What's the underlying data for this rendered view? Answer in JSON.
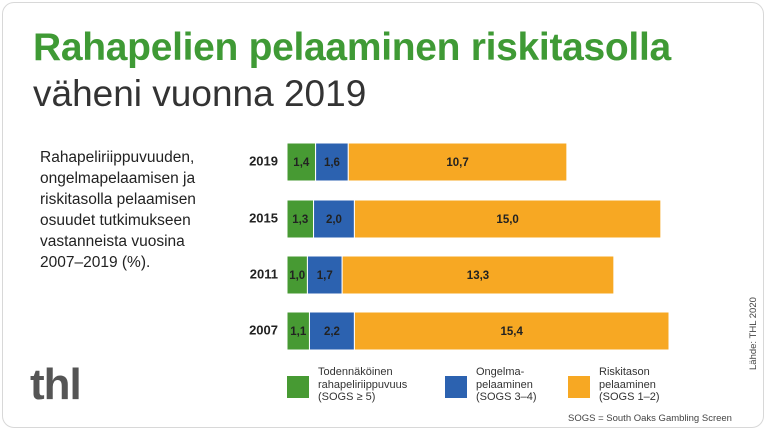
{
  "chart_data": {
    "type": "stacked-bar-horizontal",
    "title": "Rahapelien pelaaminen riskitasolla",
    "subtitle": "väheni vuonna 2019",
    "description": "Rahapeliriippuvuuden,\nongelmapelaamisen ja\nriskitasolla pelaamisen\nosuudet tutkimukseen\nvastanneista vuosina\n2007–2019 (%).",
    "categories": [
      "2019",
      "2015",
      "2011",
      "2007"
    ],
    "series": [
      {
        "name": "Todennäköinen\nrahapeliriippuvuus\n(SOGS ≥ 5)",
        "color": "#479a33",
        "values": [
          1.4,
          1.3,
          1.0,
          1.1
        ],
        "value_labels": [
          "1,4",
          "1,3",
          "1,0",
          "1,1"
        ]
      },
      {
        "name": "Ongelma-\npelaaminen\n(SOGS 3–4)",
        "color": "#2c62b0",
        "values": [
          1.6,
          2.0,
          1.7,
          2.2
        ],
        "value_labels": [
          "1,6",
          "2,0",
          "1,7",
          "2,2"
        ]
      },
      {
        "name": "Riskitason\npelaaminen\n(SOGS 1–2)",
        "color": "#f7a823",
        "values": [
          10.7,
          15.0,
          13.3,
          15.4
        ],
        "value_labels": [
          "10,7",
          "15,0",
          "13,3",
          "15,4"
        ]
      }
    ],
    "logo": "thl",
    "footnote": "SOGS = South Oaks Gambling Screen",
    "source": "Lähde: THL 2020"
  }
}
